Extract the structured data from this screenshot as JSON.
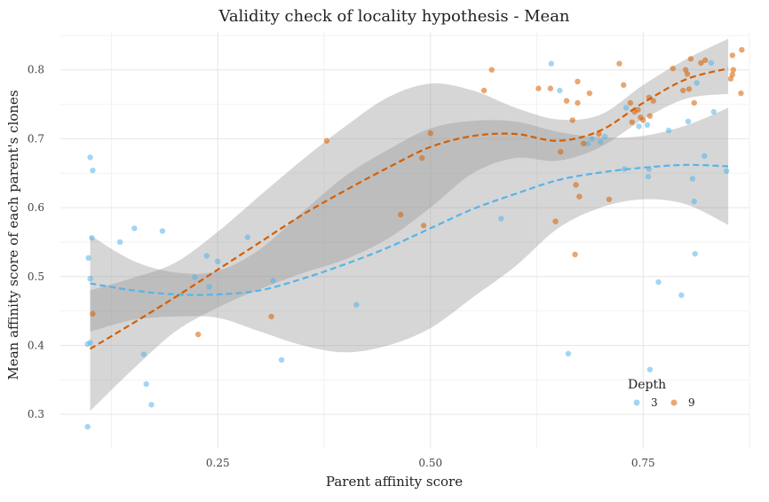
{
  "chart_data": {
    "type": "scatter",
    "title": "Validity check of locality hypothesis - Mean",
    "xlabel": "Parent affinity score",
    "ylabel": "Mean affinity score of each parent's clones",
    "xlim": [
      0.065,
      0.875
    ],
    "ylim": [
      0.25,
      0.855
    ],
    "xticks": [
      0.25,
      0.5,
      0.75
    ],
    "xtick_labels": [
      "0.25",
      "0.50",
      "0.75"
    ],
    "yticks": [
      0.3,
      0.4,
      0.5,
      0.6,
      0.7,
      0.8
    ],
    "ytick_labels": [
      "0.3",
      "0.4",
      "0.5",
      "0.6",
      "0.7",
      "0.8"
    ],
    "grid": true,
    "legend": {
      "title": "Depth",
      "position": "bottom-right"
    },
    "series": [
      {
        "name": "3",
        "color": "#56B4E9",
        "points": [
          [
            0.097,
            0.282
          ],
          [
            0.097,
            0.402
          ],
          [
            0.1,
            0.404
          ],
          [
            0.098,
            0.527
          ],
          [
            0.1,
            0.497
          ],
          [
            0.102,
            0.556
          ],
          [
            0.1,
            0.673
          ],
          [
            0.103,
            0.654
          ],
          [
            0.135,
            0.55
          ],
          [
            0.152,
            0.57
          ],
          [
            0.163,
            0.387
          ],
          [
            0.166,
            0.344
          ],
          [
            0.172,
            0.314
          ],
          [
            0.185,
            0.566
          ],
          [
            0.223,
            0.499
          ],
          [
            0.237,
            0.53
          ],
          [
            0.24,
            0.485
          ],
          [
            0.25,
            0.522
          ],
          [
            0.285,
            0.557
          ],
          [
            0.315,
            0.494
          ],
          [
            0.325,
            0.379
          ],
          [
            0.413,
            0.459
          ],
          [
            0.583,
            0.584
          ],
          [
            0.642,
            0.809
          ],
          [
            0.652,
            0.77
          ],
          [
            0.662,
            0.388
          ],
          [
            0.685,
            0.693
          ],
          [
            0.69,
            0.7
          ],
          [
            0.7,
            0.695
          ],
          [
            0.705,
            0.703
          ],
          [
            0.728,
            0.656
          ],
          [
            0.73,
            0.745
          ],
          [
            0.745,
            0.718
          ],
          [
            0.755,
            0.72
          ],
          [
            0.756,
            0.645
          ],
          [
            0.757,
            0.656
          ],
          [
            0.758,
            0.365
          ],
          [
            0.768,
            0.492
          ],
          [
            0.78,
            0.712
          ],
          [
            0.795,
            0.473
          ],
          [
            0.803,
            0.725
          ],
          [
            0.808,
            0.642
          ],
          [
            0.81,
            0.609
          ],
          [
            0.811,
            0.533
          ],
          [
            0.813,
            0.781
          ],
          [
            0.822,
            0.675
          ],
          [
            0.83,
            0.81
          ],
          [
            0.833,
            0.739
          ],
          [
            0.848,
            0.653
          ]
        ]
      },
      {
        "name": "9",
        "color": "#D55E00",
        "points": [
          [
            0.103,
            0.446
          ],
          [
            0.227,
            0.416
          ],
          [
            0.313,
            0.442
          ],
          [
            0.378,
            0.697
          ],
          [
            0.465,
            0.59
          ],
          [
            0.49,
            0.672
          ],
          [
            0.492,
            0.574
          ],
          [
            0.5,
            0.708
          ],
          [
            0.563,
            0.77
          ],
          [
            0.572,
            0.8
          ],
          [
            0.627,
            0.773
          ],
          [
            0.641,
            0.773
          ],
          [
            0.647,
            0.58
          ],
          [
            0.653,
            0.681
          ],
          [
            0.66,
            0.755
          ],
          [
            0.667,
            0.727
          ],
          [
            0.67,
            0.532
          ],
          [
            0.671,
            0.633
          ],
          [
            0.673,
            0.752
          ],
          [
            0.673,
            0.783
          ],
          [
            0.675,
            0.616
          ],
          [
            0.68,
            0.693
          ],
          [
            0.687,
            0.766
          ],
          [
            0.698,
            0.707
          ],
          [
            0.71,
            0.612
          ],
          [
            0.722,
            0.809
          ],
          [
            0.727,
            0.778
          ],
          [
            0.735,
            0.752
          ],
          [
            0.737,
            0.724
          ],
          [
            0.74,
            0.739
          ],
          [
            0.744,
            0.742
          ],
          [
            0.747,
            0.731
          ],
          [
            0.75,
            0.727
          ],
          [
            0.757,
            0.76
          ],
          [
            0.758,
            0.733
          ],
          [
            0.762,
            0.755
          ],
          [
            0.785,
            0.802
          ],
          [
            0.797,
            0.77
          ],
          [
            0.8,
            0.8
          ],
          [
            0.802,
            0.794
          ],
          [
            0.804,
            0.772
          ],
          [
            0.806,
            0.816
          ],
          [
            0.81,
            0.752
          ],
          [
            0.818,
            0.81
          ],
          [
            0.823,
            0.814
          ],
          [
            0.853,
            0.787
          ],
          [
            0.855,
            0.793
          ],
          [
            0.855,
            0.821
          ],
          [
            0.856,
            0.8
          ],
          [
            0.865,
            0.766
          ],
          [
            0.866,
            0.829
          ]
        ]
      }
    ],
    "smooth_lines": [
      {
        "name": "3",
        "color": "#56B4E9",
        "x": [
          0.1,
          0.15,
          0.2,
          0.25,
          0.3,
          0.35,
          0.4,
          0.45,
          0.5,
          0.55,
          0.6,
          0.65,
          0.7,
          0.75,
          0.8,
          0.85
        ],
        "y": [
          0.49,
          0.48,
          0.474,
          0.474,
          0.48,
          0.497,
          0.518,
          0.542,
          0.57,
          0.598,
          0.62,
          0.64,
          0.651,
          0.658,
          0.662,
          0.66
        ],
        "lower": [
          0.42,
          0.437,
          0.442,
          0.44,
          0.42,
          0.4,
          0.39,
          0.4,
          0.425,
          0.47,
          0.515,
          0.57,
          0.6,
          0.612,
          0.605,
          0.575
        ],
        "upper": [
          0.56,
          0.523,
          0.506,
          0.508,
          0.54,
          0.594,
          0.646,
          0.684,
          0.715,
          0.726,
          0.725,
          0.71,
          0.702,
          0.704,
          0.719,
          0.745
        ]
      },
      {
        "name": "9",
        "color": "#D55E00",
        "x": [
          0.1,
          0.15,
          0.2,
          0.25,
          0.3,
          0.35,
          0.4,
          0.45,
          0.5,
          0.55,
          0.6,
          0.65,
          0.7,
          0.75,
          0.8,
          0.85
        ],
        "y": [
          0.395,
          0.432,
          0.47,
          0.51,
          0.55,
          0.59,
          0.625,
          0.658,
          0.688,
          0.704,
          0.707,
          0.697,
          0.712,
          0.752,
          0.786,
          0.802
        ],
        "lower": [
          0.305,
          0.365,
          0.42,
          0.455,
          0.482,
          0.505,
          0.525,
          0.555,
          0.6,
          0.65,
          0.672,
          0.668,
          0.688,
          0.728,
          0.758,
          0.765
        ],
        "upper": [
          0.48,
          0.498,
          0.52,
          0.565,
          0.618,
          0.67,
          0.718,
          0.76,
          0.78,
          0.77,
          0.745,
          0.728,
          0.735,
          0.778,
          0.815,
          0.845
        ]
      }
    ]
  }
}
